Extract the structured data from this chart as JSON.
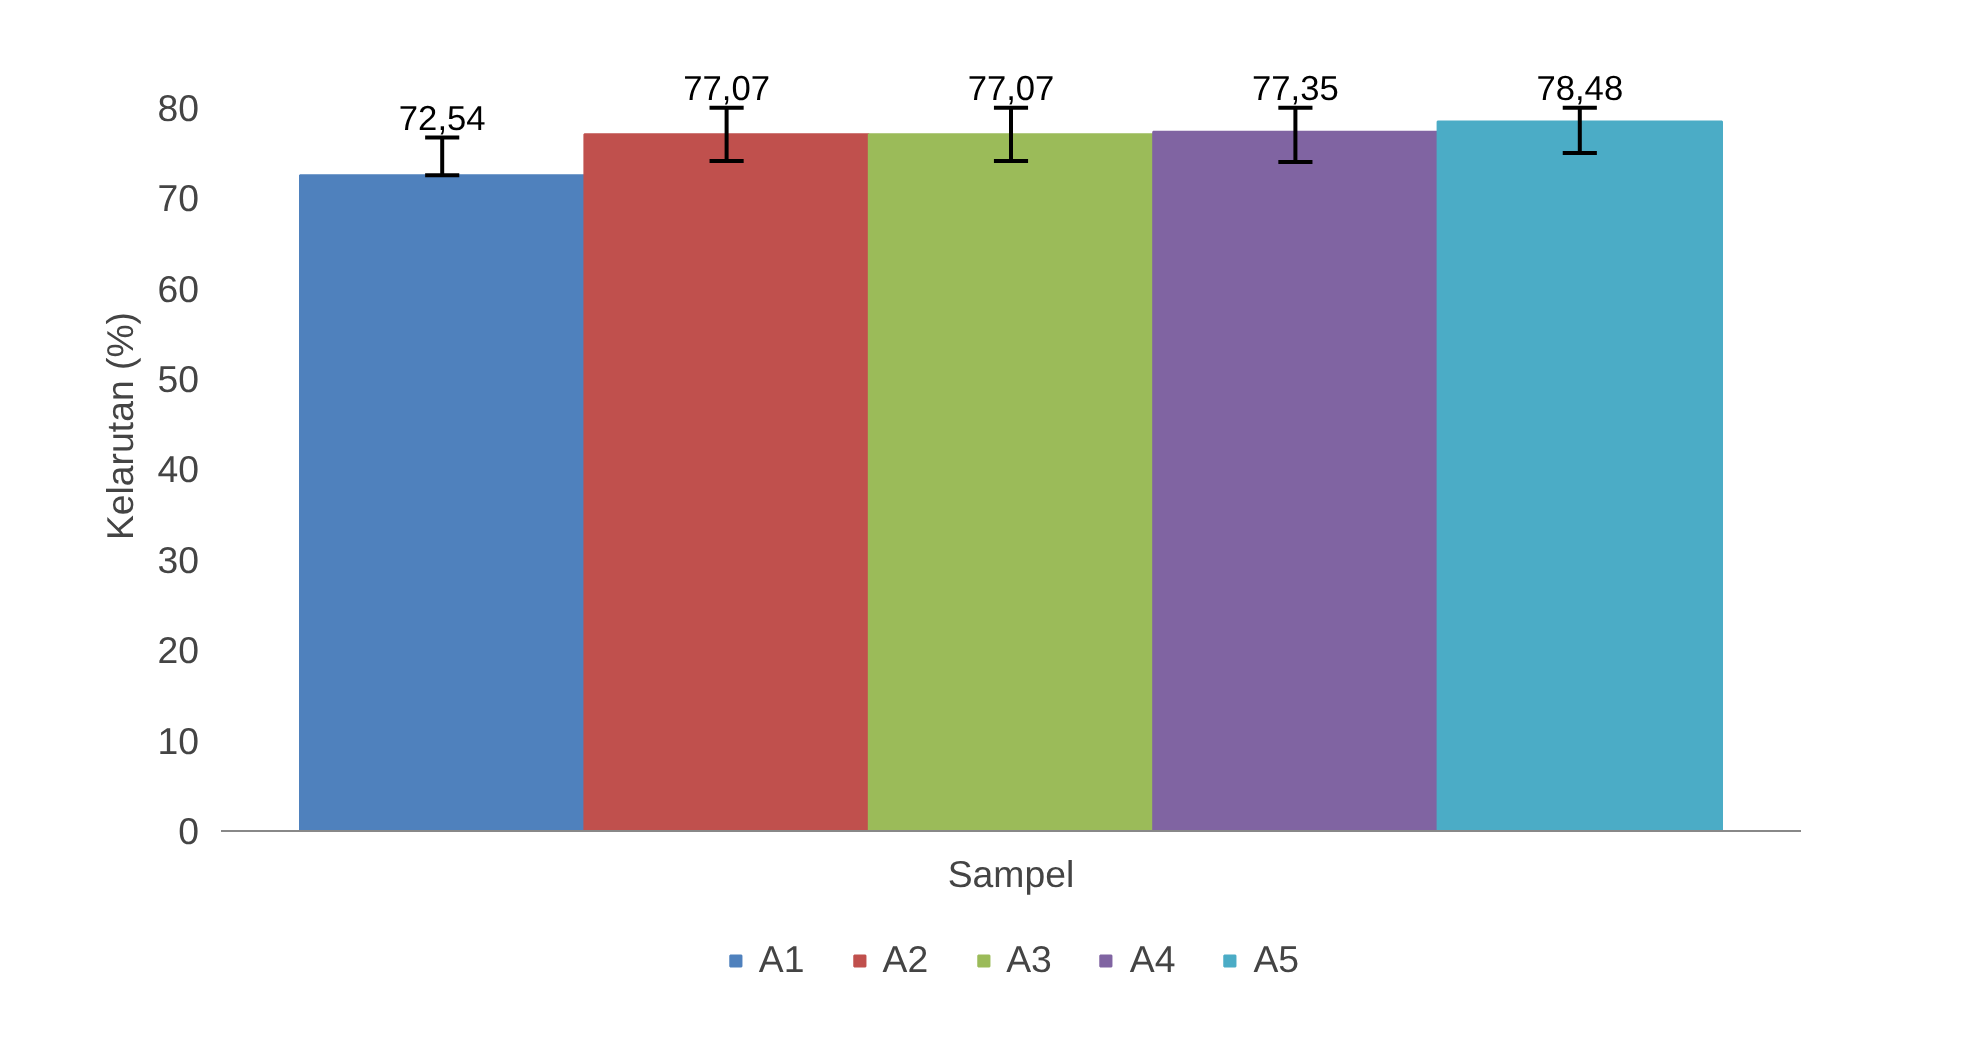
{
  "chart_data": {
    "type": "bar",
    "xlabel": "Sampel",
    "ylabel": "Kelarutan (%)",
    "categories": [
      null
    ],
    "series": [
      {
        "name": "A1",
        "color": "#4f81bd",
        "values": [
          72.54
        ],
        "value_labels": [
          "72,54"
        ],
        "errors": [
          [
            72.54,
            76.7
          ]
        ]
      },
      {
        "name": "A2",
        "color": "#c0504d",
        "values": [
          77.07
        ],
        "value_labels": [
          "77,07"
        ],
        "errors": [
          [
            74.1,
            80
          ]
        ]
      },
      {
        "name": "A3",
        "color": "#9bbb59",
        "values": [
          77.07
        ],
        "value_labels": [
          "77,07"
        ],
        "errors": [
          [
            74.1,
            80
          ]
        ]
      },
      {
        "name": "A4",
        "color": "#8064a2",
        "values": [
          77.35
        ],
        "value_labels": [
          "77,35"
        ],
        "errors": [
          [
            74.0,
            80
          ]
        ]
      },
      {
        "name": "A5",
        "color": "#4bacc6",
        "values": [
          78.48
        ],
        "value_labels": [
          "78,48"
        ],
        "errors": [
          [
            75.0,
            80
          ]
        ]
      }
    ],
    "ylim": [
      0,
      80
    ],
    "yticks": [
      0,
      10,
      20,
      30,
      40,
      50,
      60,
      70,
      80
    ],
    "grid": false,
    "legend": "bottom"
  }
}
